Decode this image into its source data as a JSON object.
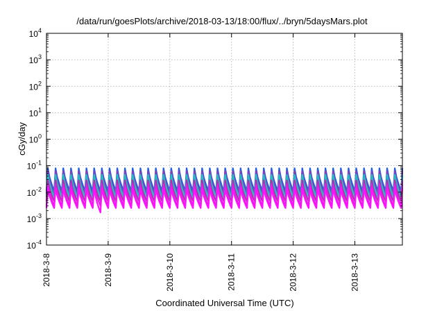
{
  "chart_data": {
    "type": "line",
    "title": "/data/run/goesPlots/archive/2018-03-13/18:00/flux/../bryn/5daysMars.plot",
    "xlabel": "Coordinated Universal Time (UTC)",
    "ylabel": "cGy/day",
    "y_scale": "log",
    "ylim": [
      0.0001,
      10000
    ],
    "y_ticks": [
      {
        "base": "10",
        "exp": "-4"
      },
      {
        "base": "10",
        "exp": "-3"
      },
      {
        "base": "10",
        "exp": "-2"
      },
      {
        "base": "10",
        "exp": "-1"
      },
      {
        "base": "10",
        "exp": "0"
      },
      {
        "base": "10",
        "exp": "1"
      },
      {
        "base": "10",
        "exp": "2"
      },
      {
        "base": "10",
        "exp": "3"
      },
      {
        "base": "10",
        "exp": "4"
      }
    ],
    "x_ticks": [
      "2018-3-8",
      "2018-3-9",
      "2018-3-10",
      "2018-3-11",
      "2018-3-12",
      "2018-3-13"
    ],
    "xlim_days": [
      0,
      5.77
    ],
    "grid": true,
    "cycles_per_day": 8,
    "series": [
      {
        "color": "#2060e0",
        "peak": 0.08,
        "trough": 0.011
      },
      {
        "color": "#8040c0",
        "peak": 0.062,
        "trough": 0.0085
      },
      {
        "color": "#20c0c0",
        "peak": 0.045,
        "trough": 0.0065
      },
      {
        "color": "#b030b0",
        "peak": 0.028,
        "trough": 0.0045
      },
      {
        "color": "#e020e0",
        "peak": 0.02,
        "trough": 0.003
      },
      {
        "color": "#ff10ff",
        "peak": 0.014,
        "trough": 0.0025
      }
    ],
    "dip": {
      "x_day": 0.92,
      "value": 0.0017
    }
  }
}
